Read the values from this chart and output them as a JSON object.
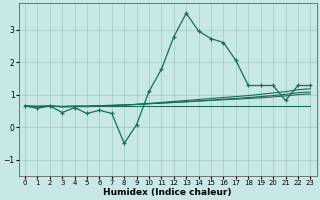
{
  "xlabel": "Humidex (Indice chaleur)",
  "bg_color": "#c8e8e8",
  "line_color": "#1a6b5a",
  "grid_color": "#a0c8c8",
  "xlim": [
    -0.5,
    23.5
  ],
  "ylim": [
    -1.5,
    3.8
  ],
  "yticks": [
    -1,
    0,
    1,
    2,
    3
  ],
  "xticks": [
    0,
    1,
    2,
    3,
    4,
    5,
    6,
    7,
    8,
    9,
    10,
    11,
    12,
    13,
    14,
    15,
    16,
    17,
    18,
    19,
    20,
    21,
    22,
    23
  ],
  "series": [
    {
      "x": [
        0,
        1,
        2,
        3,
        4,
        5,
        6,
        7,
        8,
        9,
        10,
        11,
        12,
        13,
        14,
        15,
        16,
        17,
        18,
        19,
        20,
        21,
        22,
        23
      ],
      "y": [
        0.65,
        0.58,
        0.65,
        0.45,
        0.6,
        0.42,
        0.52,
        0.42,
        -0.5,
        0.08,
        1.1,
        1.78,
        2.78,
        3.5,
        2.95,
        2.72,
        2.6,
        2.05,
        1.28,
        1.28,
        1.28,
        0.82,
        1.28,
        1.28
      ],
      "marker": true
    },
    {
      "x": [
        0,
        1,
        2,
        3,
        4,
        5,
        6,
        7,
        8,
        9,
        10,
        11,
        12,
        13,
        14,
        15,
        16,
        17,
        18,
        19,
        20,
        21,
        22,
        23
      ],
      "y": [
        0.65,
        0.65,
        0.65,
        0.65,
        0.65,
        0.65,
        0.65,
        0.65,
        0.65,
        0.65,
        0.65,
        0.65,
        0.65,
        0.65,
        0.65,
        0.65,
        0.65,
        0.65,
        0.65,
        0.65,
        0.65,
        0.65,
        0.65,
        0.65
      ],
      "marker": false
    },
    {
      "x": [
        0,
        1,
        2,
        3,
        4,
        5,
        6,
        7,
        8,
        9,
        10,
        11,
        12,
        13,
        14,
        15,
        16,
        17,
        18,
        19,
        20,
        21,
        22,
        23
      ],
      "y": [
        0.65,
        0.64,
        0.65,
        0.64,
        0.65,
        0.65,
        0.66,
        0.67,
        0.68,
        0.7,
        0.72,
        0.74,
        0.76,
        0.78,
        0.8,
        0.82,
        0.84,
        0.86,
        0.88,
        0.9,
        0.93,
        0.96,
        1.0,
        1.02
      ],
      "marker": false
    },
    {
      "x": [
        0,
        1,
        2,
        3,
        4,
        5,
        6,
        7,
        8,
        9,
        10,
        11,
        12,
        13,
        14,
        15,
        16,
        17,
        18,
        19,
        20,
        21,
        22,
        23
      ],
      "y": [
        0.65,
        0.64,
        0.65,
        0.63,
        0.64,
        0.64,
        0.66,
        0.67,
        0.68,
        0.7,
        0.72,
        0.74,
        0.76,
        0.78,
        0.81,
        0.83,
        0.86,
        0.88,
        0.91,
        0.94,
        0.97,
        1.01,
        1.06,
        1.08
      ],
      "marker": false
    },
    {
      "x": [
        0,
        1,
        2,
        3,
        4,
        5,
        6,
        7,
        8,
        9,
        10,
        11,
        12,
        13,
        14,
        15,
        16,
        17,
        18,
        19,
        20,
        21,
        22,
        23
      ],
      "y": [
        0.65,
        0.63,
        0.65,
        0.62,
        0.63,
        0.63,
        0.65,
        0.66,
        0.68,
        0.7,
        0.73,
        0.76,
        0.79,
        0.82,
        0.85,
        0.88,
        0.91,
        0.94,
        0.97,
        1.01,
        1.05,
        1.09,
        1.15,
        1.18
      ],
      "marker": false
    }
  ]
}
